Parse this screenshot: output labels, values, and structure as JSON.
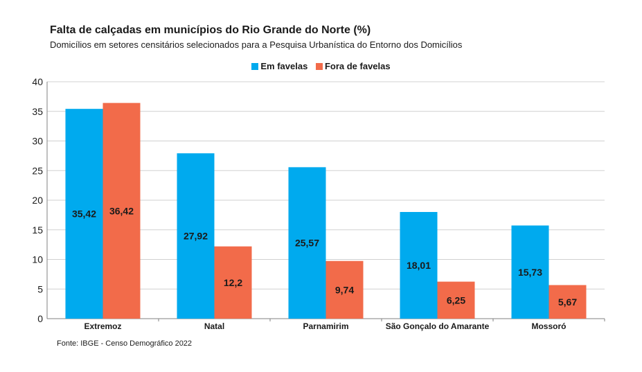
{
  "colors": {
    "em_favelas": "#00aaee",
    "fora_de_favelas": "#f26b4a",
    "grid": "#d0d0d0",
    "axis": "#808080"
  },
  "legend": {
    "items": [
      {
        "label": "Em favelas"
      },
      {
        "label": "Fora de favelas"
      }
    ]
  },
  "source": "Fonte: IBGE - Censo Demográfico 2022",
  "chart_data": {
    "type": "bar",
    "title": "Falta de calçadas em municípios do Rio Grande do Norte (%)",
    "subtitle": "Domicílios em setores censitários selecionados para a Pesquisa Urbanística do Entorno dos Domicílios",
    "categories": [
      "Extremoz",
      "Natal",
      "Parnamirim",
      "São Gonçalo do Amarante",
      "Mossoró"
    ],
    "series": [
      {
        "name": "Em favelas",
        "values": [
          35.42,
          27.92,
          25.57,
          18.01,
          15.73
        ],
        "labels": [
          "35,42",
          "27,92",
          "25,57",
          "18,01",
          "15,73"
        ]
      },
      {
        "name": "Fora de favelas",
        "values": [
          36.42,
          12.2,
          9.74,
          6.25,
          5.67
        ],
        "labels": [
          "36,42",
          "12,2",
          "9,74",
          "6,25",
          "5,67"
        ]
      }
    ],
    "ylim": [
      0,
      40
    ],
    "yticks": [
      0,
      5,
      10,
      15,
      20,
      25,
      30,
      35,
      40
    ],
    "xlabel": "",
    "ylabel": "",
    "grid": true,
    "legend_position": "top-center"
  }
}
